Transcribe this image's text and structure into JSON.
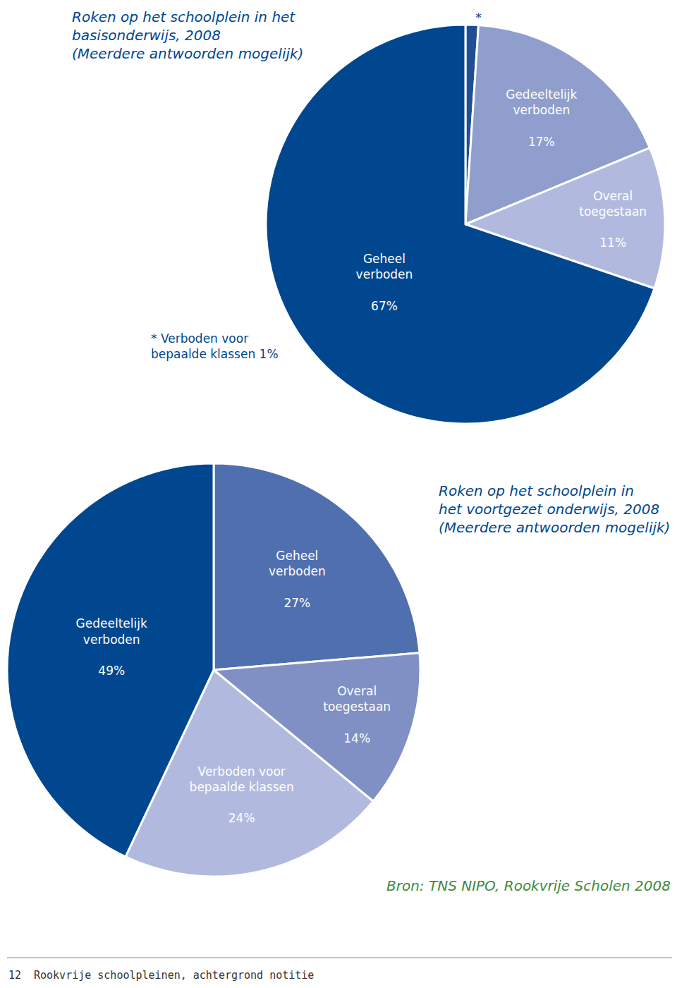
{
  "chart_data": [
    {
      "type": "pie",
      "title": "Roken op het schoolplein in het\nbasisonderwijs, 2008",
      "subtitle": "(Meerdere antwoorden mogelijk)",
      "labels": [
        "Verboden voor bepaalde klassen",
        "Gedeeltelijk verboden",
        "Overal toegestaan",
        "Geheel verboden"
      ],
      "values": [
        1,
        17,
        11,
        67
      ],
      "value_labels": [
        "1%",
        "17%",
        "11%",
        "67%"
      ],
      "short_labels": [
        "*",
        null,
        null,
        null
      ],
      "colors": [
        "#1f4e96",
        "#8f9ecc",
        "#b1bade",
        "#00478f"
      ],
      "data_labels": true,
      "note": "* Verboden voor\nbepaalde klassen 1%"
    },
    {
      "type": "pie",
      "title": "Roken op het schoolplein in\nhet voortgezet onderwijs, 2008",
      "subtitle": "(Meerdere antwoorden mogelijk)",
      "labels": [
        "Geheel verboden",
        "Overal toegestaan",
        "Verboden voor bepaalde klassen",
        "Gedeeltelijk verboden"
      ],
      "values": [
        27,
        14,
        24,
        49
      ],
      "value_labels": [
        "27%",
        "14%",
        "24%",
        "49%"
      ],
      "colors": [
        "#4f6fae",
        "#8090c4",
        "#b1bade",
        "#00478f"
      ],
      "data_labels": true
    }
  ],
  "source": "Bron: TNS NIPO, Rookvrije Scholen 2008",
  "footer": {
    "page": 12,
    "text": "Rookvrije schoolpleinen, achtergrond notitie"
  }
}
